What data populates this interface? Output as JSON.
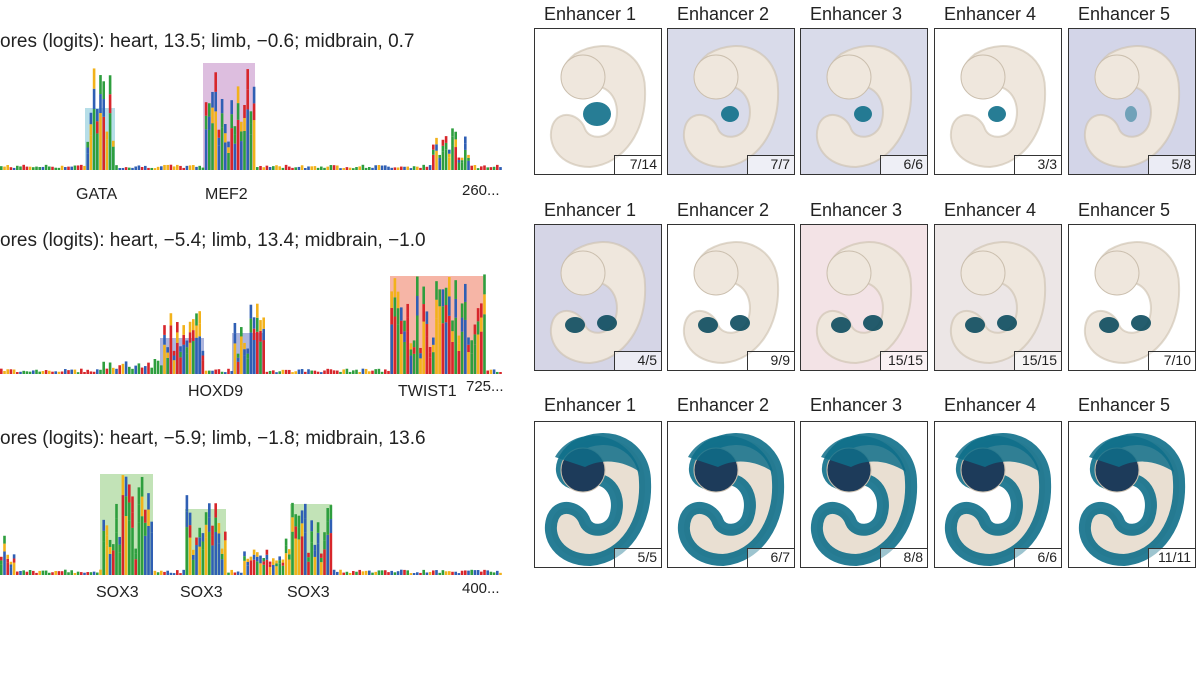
{
  "left_panel": {
    "rows": [
      {
        "scores": "ores (logits): heart, 13.5; limb, −0.6; midbrain, 0.7",
        "coord": "260...",
        "motifs": [
          {
            "label": "GATA",
            "color": "#a9d8e4"
          },
          {
            "label": "MEF2",
            "color": "#d7b3d9"
          }
        ]
      },
      {
        "scores": "ores (logits): heart, −5.4; limb, 13.4; midbrain, −1.0",
        "coord": "725...",
        "motifs": [
          {
            "label": "HOXD9",
            "color": "#9fa8d8"
          },
          {
            "label": "TWIST1",
            "color": "#f5a897"
          }
        ]
      },
      {
        "scores": "ores (logits): heart, −5.9; limb, −1.8; midbrain, 13.6",
        "coord": "400...",
        "motifs": [
          {
            "label": "SOX3",
            "color": "#b7deaa"
          },
          {
            "label": "SOX3",
            "color": "#b7deaa"
          },
          {
            "label": "SOX3",
            "color": "#b7deaa"
          }
        ]
      }
    ],
    "base_colors": {
      "A": "#2e9e3e",
      "C": "#2f5fb4",
      "G": "#f2b21b",
      "T": "#d7262b"
    }
  },
  "right_panel": {
    "headers": [
      "Enhancer 1",
      "Enhancer 2",
      "Enhancer 3",
      "Enhancer 4",
      "Enhancer 5"
    ],
    "rows": [
      {
        "tissue": "heart",
        "counts": [
          "7/14",
          "7/7",
          "6/6",
          "3/3",
          "5/8"
        ]
      },
      {
        "tissue": "limb",
        "counts": [
          "4/5",
          "9/9",
          "15/15",
          "15/15",
          "7/10"
        ]
      },
      {
        "tissue": "midbrain",
        "counts": [
          "5/5",
          "6/7",
          "8/8",
          "6/6",
          "11/11"
        ]
      }
    ],
    "stain_color": "#0f6f8a"
  }
}
